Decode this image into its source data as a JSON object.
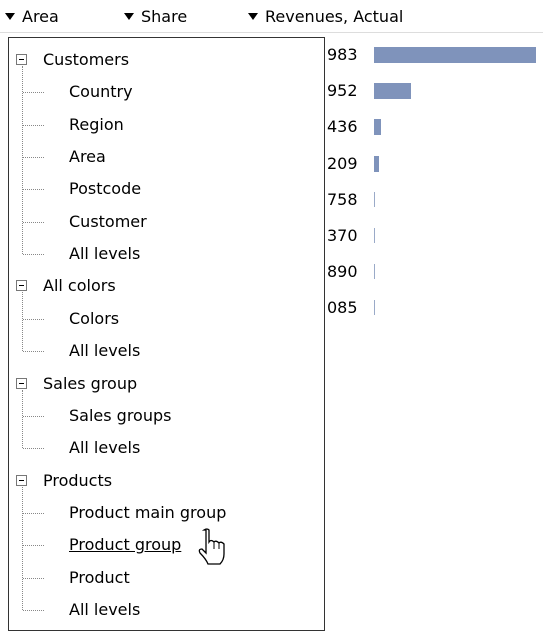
{
  "header": {
    "columns": [
      "Area",
      "Share",
      "Revenues, Actual"
    ]
  },
  "table": {
    "values": [
      "983",
      "952",
      "436",
      "209",
      "758",
      "370",
      "890",
      "085"
    ]
  },
  "menu": {
    "groups": [
      {
        "label": "Customers",
        "items": [
          "Country",
          "Region",
          "Area",
          "Postcode",
          "Customer",
          "All levels"
        ]
      },
      {
        "label": "All colors",
        "items": [
          "Colors",
          "All levels"
        ]
      },
      {
        "label": "Sales group",
        "items": [
          "Sales groups",
          "All levels"
        ]
      },
      {
        "label": "Products",
        "items": [
          "Product main group",
          "Product group",
          "Product",
          "All levels"
        ]
      }
    ]
  }
}
